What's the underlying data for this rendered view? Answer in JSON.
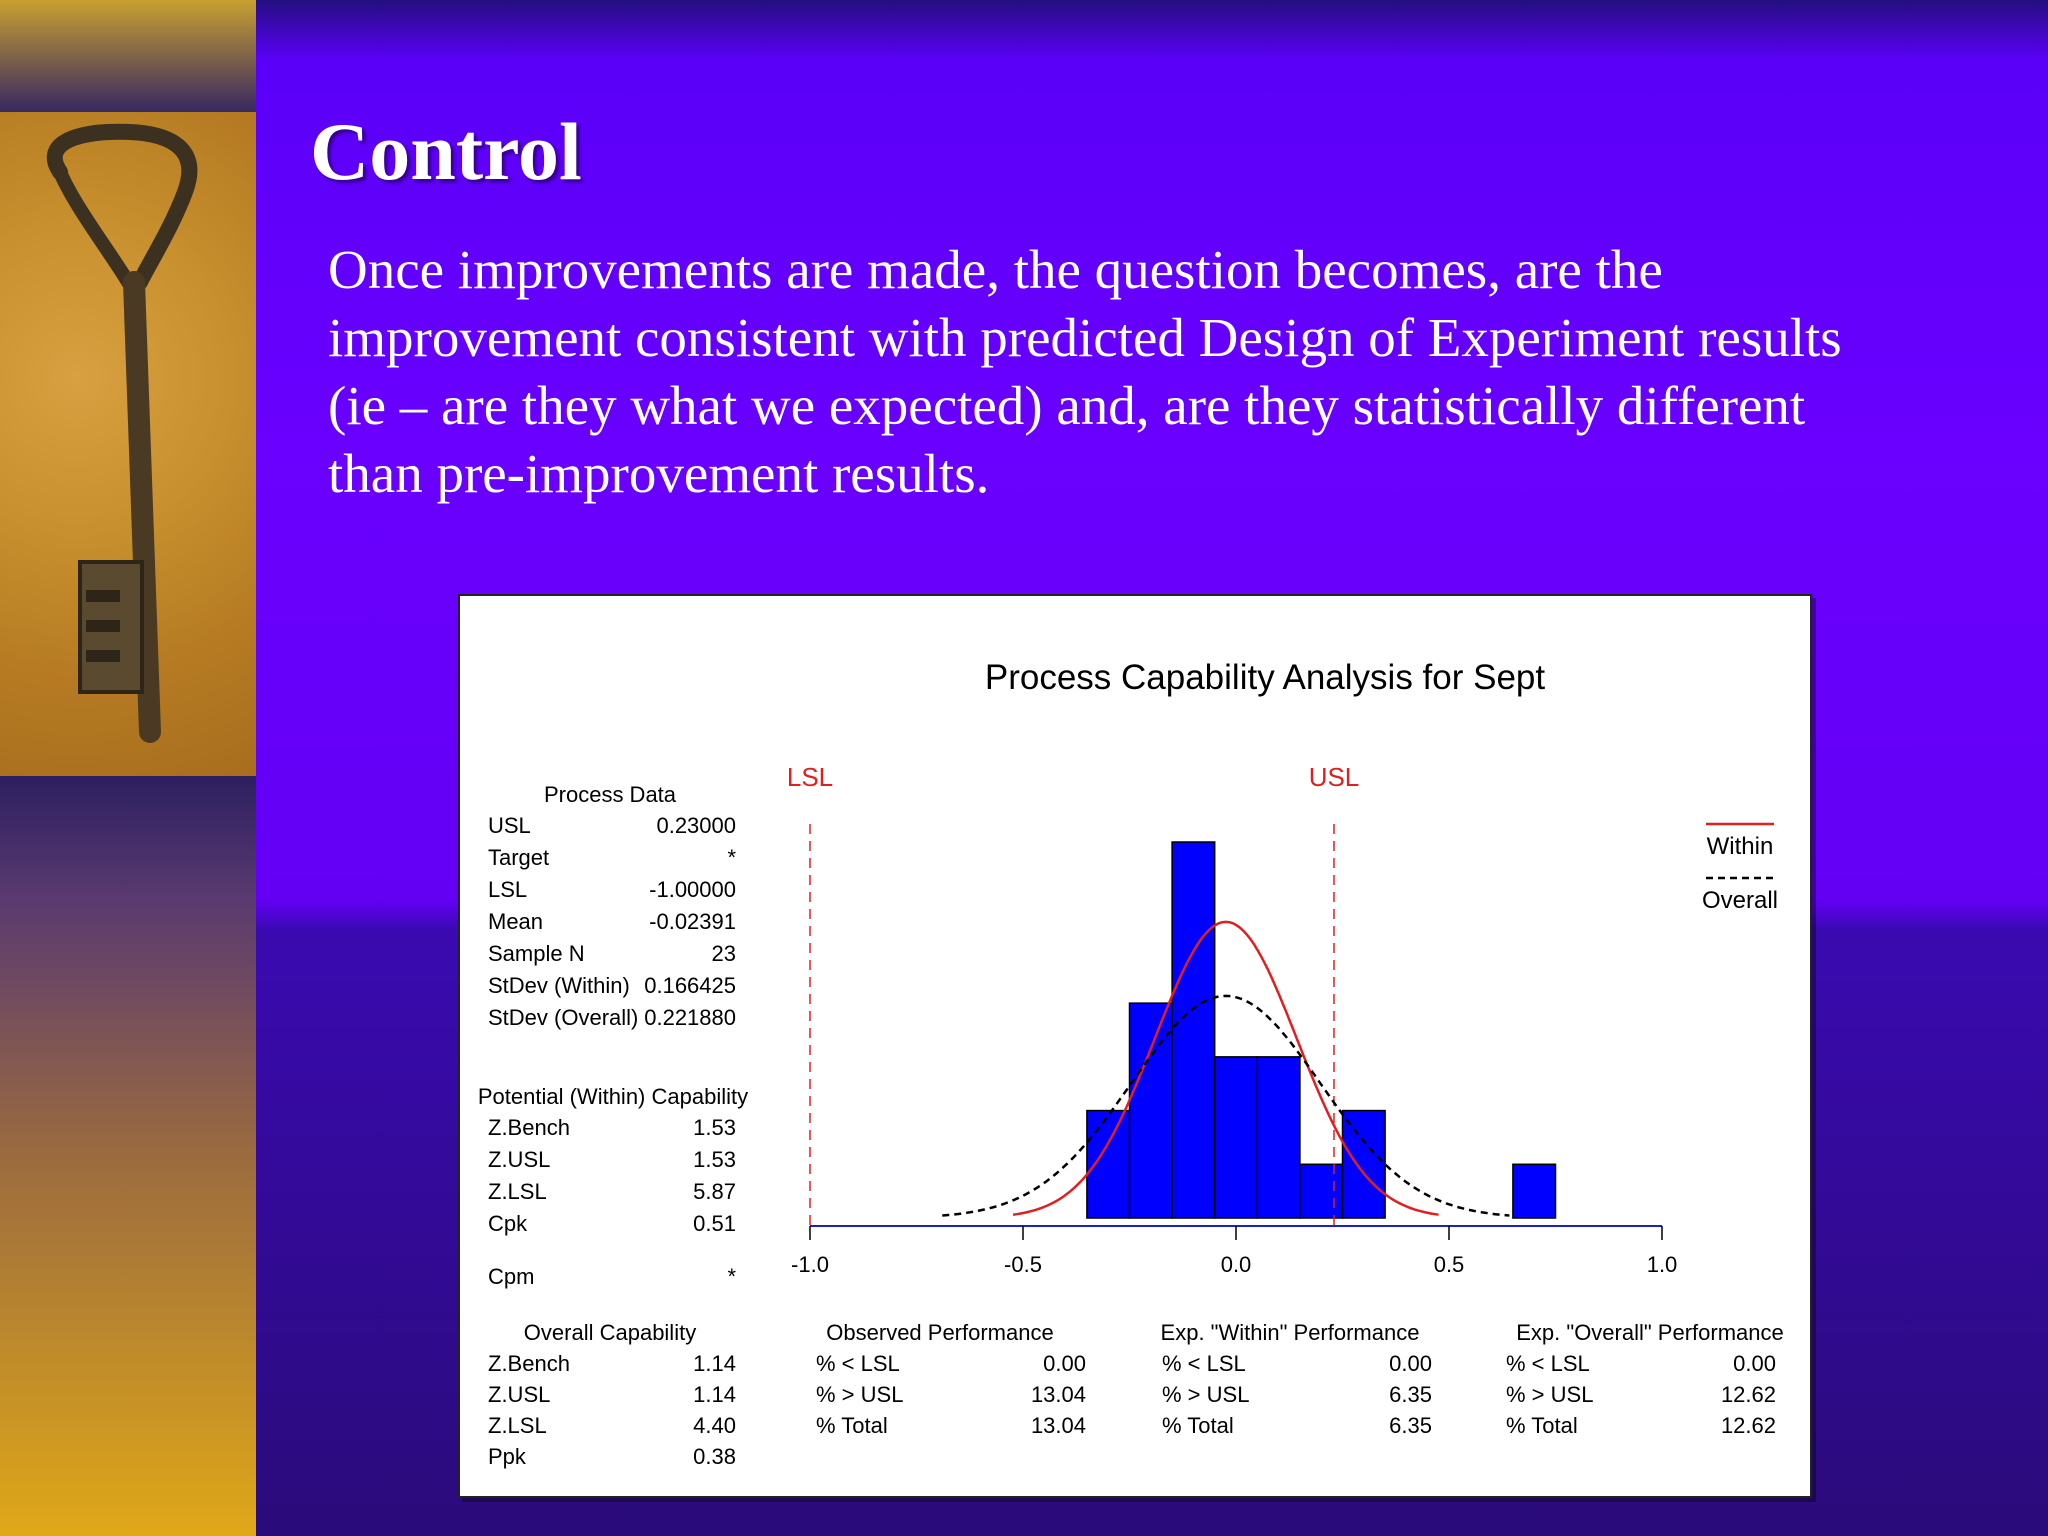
{
  "slide": {
    "title": "Control",
    "body": "Once improvements are made, the question becomes, are the improvement consistent with predicted Design of Experiment results (ie – are they what we expected) and, are they statistically different than pre-improvement results."
  },
  "chart_data": {
    "type": "bar",
    "title": "Process Capability Analysis for Sept",
    "xlim": [
      -1.0,
      1.0
    ],
    "x_ticks": [
      "-1.0",
      "-0.5",
      "0.0",
      "0.5",
      "1.0"
    ],
    "spec_lines": [
      {
        "label": "LSL",
        "x": -1.0,
        "color": "#e02020"
      },
      {
        "label": "USL",
        "x": 0.23,
        "color": "#e02020"
      }
    ],
    "histogram": {
      "bin_edges": [
        -0.35,
        -0.25,
        -0.15,
        -0.05,
        0.05,
        0.15,
        0.25,
        0.35,
        0.45,
        0.55,
        0.65,
        0.75
      ],
      "counts": [
        2,
        4,
        7,
        3,
        3,
        1,
        2,
        0,
        0,
        0,
        1
      ],
      "color": "#0000ff"
    },
    "curves": [
      {
        "name": "Within",
        "mean": -0.02391,
        "stdev": 0.166425,
        "style": "solid",
        "color": "#e02020"
      },
      {
        "name": "Overall",
        "mean": -0.02391,
        "stdev": 0.22188,
        "style": "dashed",
        "color": "#000000"
      }
    ],
    "legend_position": "right"
  },
  "process_data": {
    "title": "Process Data",
    "rows": [
      {
        "label": "USL",
        "value": "0.23000"
      },
      {
        "label": "Target",
        "value": "*"
      },
      {
        "label": "LSL",
        "value": "-1.00000"
      },
      {
        "label": "Mean",
        "value": "-0.02391"
      },
      {
        "label": "Sample N",
        "value": "23"
      },
      {
        "label": "StDev (Within)",
        "value": "0.166425"
      },
      {
        "label": "StDev (Overall)",
        "value": "0.221880"
      }
    ]
  },
  "potential_capability": {
    "title": "Potential (Within) Capability",
    "rows": [
      {
        "label": "Z.Bench",
        "value": "1.53"
      },
      {
        "label": "Z.USL",
        "value": "1.53"
      },
      {
        "label": "Z.LSL",
        "value": "5.87"
      },
      {
        "label": "Cpk",
        "value": "0.51"
      }
    ],
    "cpm": {
      "label": "Cpm",
      "value": "*"
    }
  },
  "overall_capability": {
    "title": "Overall Capability",
    "rows": [
      {
        "label": "Z.Bench",
        "value": "1.14"
      },
      {
        "label": "Z.USL",
        "value": "1.14"
      },
      {
        "label": "Z.LSL",
        "value": "4.40"
      },
      {
        "label": "Ppk",
        "value": "0.38"
      }
    ]
  },
  "observed_performance": {
    "title": "Observed Performance",
    "rows": [
      {
        "label": "% < LSL",
        "value": "0.00"
      },
      {
        "label": "% > USL",
        "value": "13.04"
      },
      {
        "label": "% Total",
        "value": "13.04"
      }
    ]
  },
  "within_performance": {
    "title": "Exp. \"Within\" Performance",
    "rows": [
      {
        "label": "% < LSL",
        "value": "0.00"
      },
      {
        "label": "% > USL",
        "value": "6.35"
      },
      {
        "label": "% Total",
        "value": "6.35"
      }
    ]
  },
  "overall_performance": {
    "title": "Exp. \"Overall\" Performance",
    "rows": [
      {
        "label": "% < LSL",
        "value": "0.00"
      },
      {
        "label": "% > USL",
        "value": "12.62"
      },
      {
        "label": "% Total",
        "value": "12.62"
      }
    ]
  }
}
